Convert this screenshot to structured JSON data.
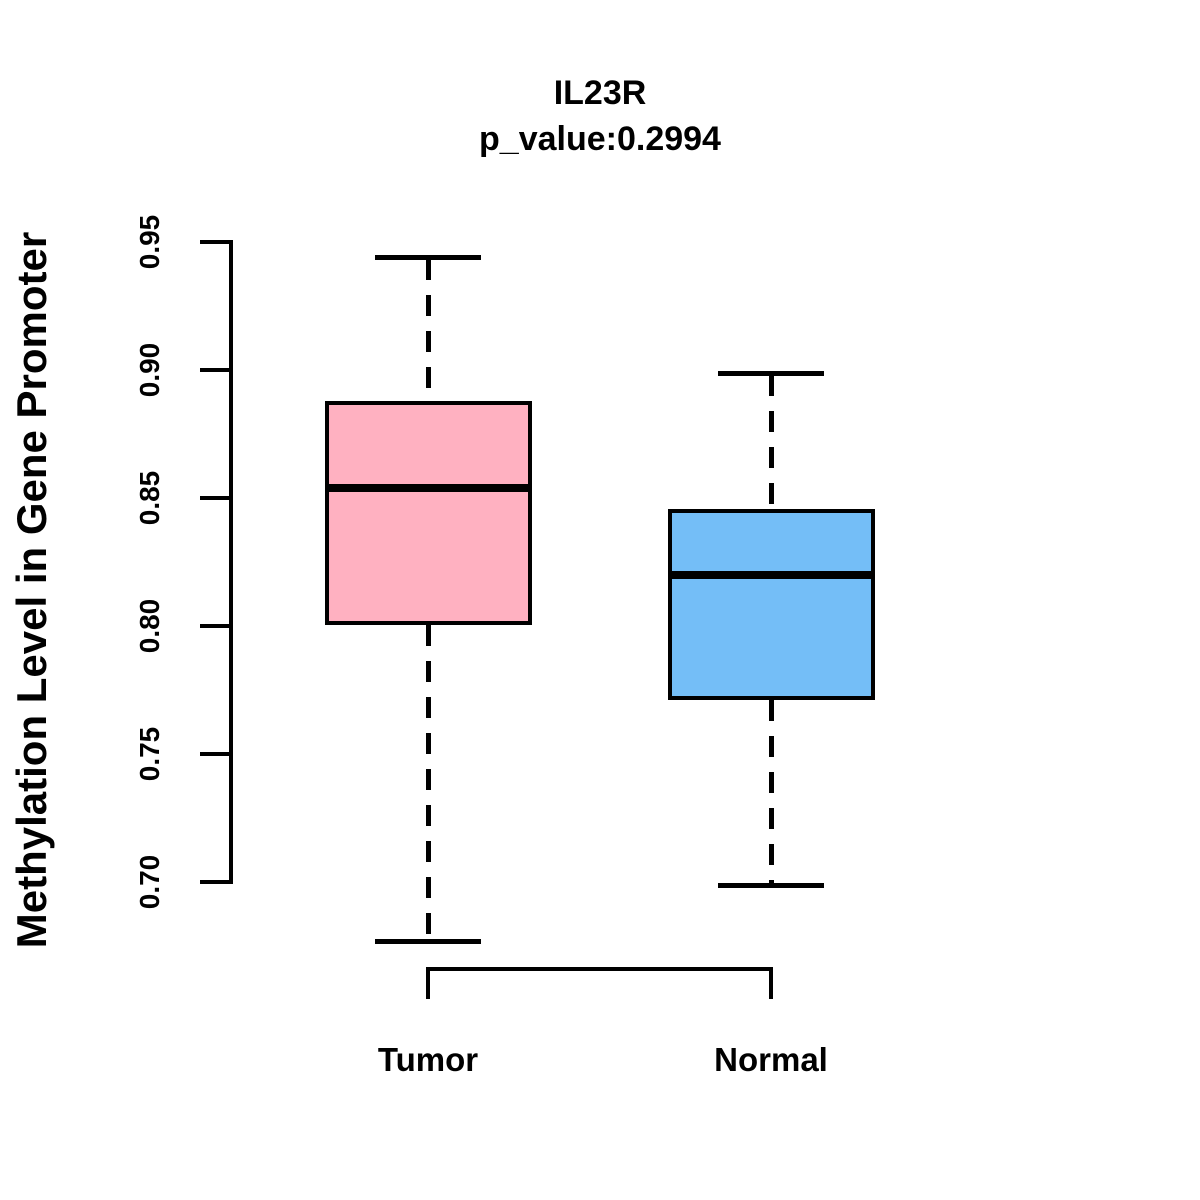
{
  "chart_data": {
    "type": "boxplot",
    "title": "IL23R",
    "subtitle": "p_value:0.2994",
    "gene": "IL23R",
    "p_value": 0.2994,
    "ylabel": "Methylation Level in Gene Promoter",
    "xlabel": "",
    "categories": [
      "Tumor",
      "Normal"
    ],
    "y_ticks": [
      0.7,
      0.75,
      0.8,
      0.85,
      0.9,
      0.95
    ],
    "y_tick_labels": [
      "0.70",
      "0.75",
      "0.80",
      "0.85",
      "0.90",
      "0.95"
    ],
    "ylim": [
      0.66,
      0.96
    ],
    "grid": false,
    "legend_position": "none",
    "series": [
      {
        "name": "Tumor",
        "fill_color": "#FFB1C1",
        "lower_whisker": 0.677,
        "q1": 0.801,
        "median": 0.854,
        "q3": 0.887,
        "upper_whisker": 0.944
      },
      {
        "name": "Normal",
        "fill_color": "#74BEF7",
        "lower_whisker": 0.699,
        "q1": 0.772,
        "median": 0.82,
        "q3": 0.845,
        "upper_whisker": 0.899
      }
    ],
    "colors": {
      "stroke": "#000000",
      "background": "#FFFFFF",
      "tumor_fill": "#FFB1C1",
      "normal_fill": "#74BEF7"
    }
  }
}
